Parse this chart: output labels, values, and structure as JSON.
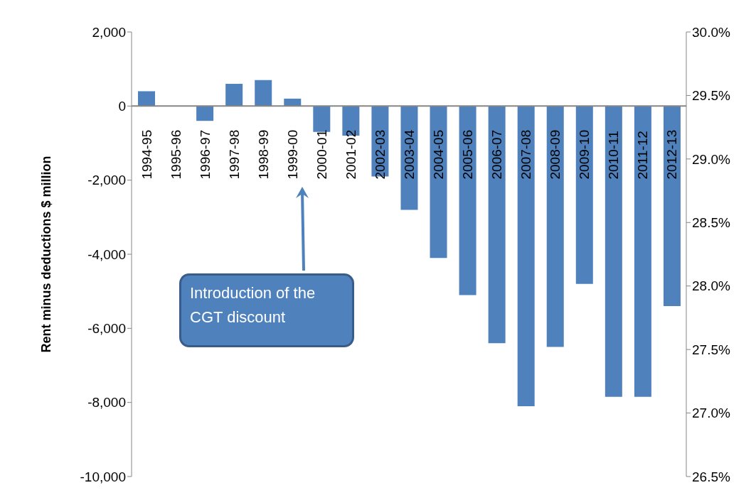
{
  "chart_data": {
    "type": "bar",
    "ylabel": "Rent minus deductions $ million",
    "categories": [
      "1994-95",
      "1995-96",
      "1996-97",
      "1997-98",
      "1998-99",
      "1999-00",
      "2000-01",
      "2001-02",
      "2002-03",
      "2003-04",
      "2004-05",
      "2005-06",
      "2006-07",
      "2007-08",
      "2008-09",
      "2009-10",
      "2010-11",
      "2011-12",
      "2012-13"
    ],
    "values": [
      400,
      0,
      -400,
      600,
      700,
      200,
      -700,
      -800,
      -1900,
      -2800,
      -4100,
      -5100,
      -6400,
      -8100,
      -6500,
      -4800,
      -7850,
      -7850,
      -5400
    ],
    "color": "#4f81bd",
    "ylim": [
      -10000,
      2000
    ],
    "yticks": [
      {
        "value": -10000,
        "label": "-10,000"
      },
      {
        "value": -8000,
        "label": "-8,000"
      },
      {
        "value": -6000,
        "label": "-6,000"
      },
      {
        "value": -4000,
        "label": "-4,000"
      },
      {
        "value": -2000,
        "label": "-2,000"
      },
      0,
      {
        "value": 2000,
        "label": "2,000"
      }
    ],
    "y2lim": [
      26.5,
      30.0
    ],
    "y2ticks": [
      {
        "value": 26.5,
        "label": "26.5%"
      },
      {
        "value": 27.0,
        "label": "27.0%"
      },
      {
        "value": 27.5,
        "label": "27.5%"
      },
      {
        "value": 28.0,
        "label": "28.0%"
      },
      {
        "value": 28.5,
        "label": "28.5%"
      },
      {
        "value": 29.0,
        "label": "29.0%"
      },
      {
        "value": 29.5,
        "label": "29.5%"
      },
      {
        "value": 30.0,
        "label": "30.0%"
      }
    ],
    "annotations": [
      "Introduction of the CGT discount"
    ],
    "grid": false
  }
}
